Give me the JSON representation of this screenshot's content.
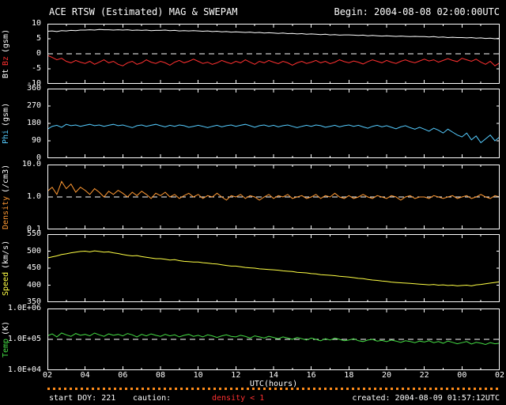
{
  "header": {
    "title": "ACE RTSW (Estimated) MAG & SWEPAM",
    "begin": "Begin: 2004-08-08 02:00:00UTC"
  },
  "footer": {
    "start_doy": "start DOY: 221",
    "caution_label": "caution:",
    "caution_value": "density < 1",
    "created": "created: 2004-08-09 01:57:12UTC"
  },
  "colors": {
    "background": "#000000",
    "frame": "#ffffff",
    "bt": "#ffffff",
    "bz": "#ff3030",
    "phi": "#55ccff",
    "density": "#ff9933",
    "speed": "#ffff44",
    "temp": "#44dd44",
    "caution": "#ff8c1a"
  },
  "chart_data": {
    "type": "line",
    "title": "ACE RTSW (Estimated) MAG & SWEPAM",
    "x_axis": {
      "label": "UTC(hours)",
      "range": [
        2,
        26
      ],
      "ticks": [
        "02",
        "04",
        "06",
        "08",
        "10",
        "12",
        "14",
        "16",
        "18",
        "20",
        "22",
        "00",
        "02"
      ],
      "tick_values": [
        2,
        4,
        6,
        8,
        10,
        12,
        14,
        16,
        18,
        20,
        22,
        24,
        26
      ]
    },
    "panels": [
      {
        "id": "mag",
        "axis_label_parts": [
          {
            "text": "Bt",
            "color": "#ffffff"
          },
          {
            "text": "Bz",
            "color": "#ff3030"
          },
          {
            "text": "(gsm)",
            "color": "#ffffff"
          }
        ],
        "scale": "linear",
        "ylim": [
          -10,
          10
        ],
        "yticks": [
          {
            "v": 10,
            "label": "10"
          },
          {
            "v": 5,
            "label": "5"
          },
          {
            "v": 0,
            "label": "0"
          },
          {
            "v": -5,
            "label": "-5"
          },
          {
            "v": -10,
            "label": "-10"
          }
        ],
        "dashed_at": 0,
        "series": [
          {
            "name": "Bt",
            "color": "#ffffff",
            "x_start": 2,
            "x_step": 0.25,
            "values": [
              7.5,
              7.6,
              7.4,
              7.7,
              7.6,
              7.8,
              7.7,
              7.9,
              7.9,
              8.0,
              7.9,
              8.1,
              8.0,
              8.0,
              7.9,
              8.0,
              7.9,
              8.0,
              7.8,
              7.9,
              7.8,
              7.9,
              7.7,
              7.8,
              7.8,
              7.9,
              7.7,
              7.8,
              7.6,
              7.7,
              7.6,
              7.7,
              7.6,
              7.5,
              7.6,
              7.4,
              7.5,
              7.3,
              7.4,
              7.2,
              7.3,
              7.2,
              7.1,
              7.2,
              7.0,
              7.1,
              6.9,
              7.0,
              6.9,
              6.8,
              6.9,
              6.7,
              6.8,
              6.6,
              6.7,
              6.5,
              6.6,
              6.5,
              6.4,
              6.5,
              6.3,
              6.4,
              6.2,
              6.3,
              6.3,
              6.2,
              6.1,
              6.2,
              6.0,
              6.1,
              6.0,
              5.9,
              6.0,
              5.9,
              5.8,
              5.9,
              5.8,
              5.7,
              5.8,
              5.7,
              5.7,
              5.6,
              5.7,
              5.5,
              5.6,
              5.4,
              5.5,
              5.4,
              5.4,
              5.3,
              5.4,
              5.2,
              5.3,
              5.1,
              5.2,
              5.0,
              5.2
            ]
          },
          {
            "name": "Bz",
            "color": "#ff3030",
            "x_start": 2,
            "x_step": 0.25,
            "values": [
              -0.5,
              -1.2,
              -2.0,
              -1.5,
              -2.5,
              -3.0,
              -2.2,
              -2.8,
              -3.2,
              -2.5,
              -3.5,
              -2.8,
              -2.0,
              -3.0,
              -2.5,
              -3.5,
              -4.0,
              -3.0,
              -2.5,
              -3.5,
              -3.0,
              -2.0,
              -2.8,
              -3.2,
              -2.5,
              -3.0,
              -3.8,
              -2.8,
              -2.2,
              -3.0,
              -2.5,
              -1.8,
              -2.5,
              -3.2,
              -2.8,
              -3.5,
              -3.0,
              -2.2,
              -2.8,
              -3.3,
              -2.5,
              -3.0,
              -2.0,
              -2.8,
              -3.5,
              -2.5,
              -3.0,
              -2.2,
              -2.8,
              -3.3,
              -2.5,
              -3.0,
              -3.8,
              -3.0,
              -2.5,
              -3.2,
              -2.8,
              -2.2,
              -3.0,
              -2.5,
              -3.3,
              -2.8,
              -2.0,
              -2.6,
              -3.0,
              -2.4,
              -2.8,
              -3.4,
              -2.6,
              -2.0,
              -2.5,
              -3.0,
              -2.2,
              -2.8,
              -3.2,
              -2.5,
              -2.0,
              -2.6,
              -3.0,
              -2.4,
              -1.8,
              -2.4,
              -2.0,
              -2.8,
              -2.2,
              -1.6,
              -2.2,
              -2.6,
              -1.5,
              -2.0,
              -2.5,
              -1.8,
              -2.8,
              -3.5,
              -2.5,
              -4.0,
              -3.0
            ]
          }
        ]
      },
      {
        "id": "phi",
        "axis_label_parts": [
          {
            "text": "Phi",
            "color": "#55ccff"
          },
          {
            "text": "(gsm)",
            "color": "#ffffff"
          }
        ],
        "scale": "linear",
        "ylim": [
          0,
          360
        ],
        "yticks": [
          {
            "v": 360,
            "label": "360"
          },
          {
            "v": 270,
            "label": "270"
          },
          {
            "v": 180,
            "label": "180"
          },
          {
            "v": 90,
            "label": "90"
          },
          {
            "v": 0,
            "label": "0"
          }
        ],
        "dashed_at": null,
        "series": [
          {
            "name": "Phi",
            "color": "#55ccff",
            "x_start": 2,
            "x_step": 0.25,
            "values": [
              150,
              165,
              170,
              160,
              175,
              168,
              172,
              165,
              170,
              175,
              168,
              172,
              165,
              170,
              175,
              168,
              172,
              165,
              158,
              168,
              172,
              165,
              170,
              175,
              168,
              162,
              170,
              165,
              172,
              168,
              160,
              165,
              170,
              165,
              158,
              165,
              170,
              162,
              168,
              172,
              165,
              170,
              175,
              168,
              160,
              168,
              172,
              165,
              170,
              162,
              168,
              172,
              165,
              158,
              165,
              170,
              165,
              172,
              168,
              160,
              165,
              170,
              162,
              168,
              172,
              165,
              170,
              162,
              155,
              165,
              170,
              162,
              168,
              160,
              152,
              162,
              168,
              158,
              150,
              160,
              150,
              140,
              155,
              145,
              130,
              150,
              135,
              120,
              110,
              130,
              95,
              115,
              80,
              100,
              120,
              90,
              110
            ]
          }
        ]
      },
      {
        "id": "density",
        "axis_label_parts": [
          {
            "text": "Density",
            "color": "#ff9933"
          },
          {
            "text": "(/cm3)",
            "color": "#ffffff"
          }
        ],
        "scale": "log",
        "ylim": [
          0.1,
          10
        ],
        "yticks": [
          {
            "v": 10,
            "label": "10.0"
          },
          {
            "v": 1,
            "label": "1.0"
          },
          {
            "v": 0.1,
            "label": "0.1"
          }
        ],
        "dashed_at": 1,
        "series": [
          {
            "name": "Density",
            "color": "#ff9933",
            "x_start": 2,
            "x_step": 0.25,
            "values": [
              1.5,
              2.0,
              1.2,
              3.0,
              1.8,
              2.5,
              1.4,
              2.0,
              1.6,
              1.2,
              1.8,
              1.4,
              1.0,
              1.5,
              1.2,
              1.6,
              1.3,
              1.0,
              1.4,
              1.1,
              1.5,
              1.2,
              0.9,
              1.3,
              1.1,
              1.4,
              1.0,
              1.2,
              0.9,
              1.1,
              1.3,
              1.0,
              1.2,
              0.9,
              1.1,
              1.0,
              1.3,
              1.0,
              0.8,
              1.1,
              1.0,
              1.2,
              0.9,
              1.1,
              1.0,
              0.8,
              1.0,
              1.2,
              0.9,
              1.1,
              1.0,
              1.2,
              0.9,
              1.0,
              1.1,
              0.9,
              1.0,
              1.2,
              0.9,
              1.1,
              1.0,
              1.3,
              1.0,
              0.9,
              1.1,
              0.9,
              1.0,
              1.2,
              1.0,
              0.9,
              1.1,
              1.0,
              0.9,
              1.1,
              1.0,
              0.8,
              1.0,
              1.1,
              0.9,
              1.0,
              1.0,
              0.9,
              1.1,
              1.0,
              0.9,
              1.0,
              1.1,
              0.9,
              1.0,
              1.1,
              0.9,
              1.0,
              1.2,
              1.0,
              0.9,
              1.1,
              1.0
            ]
          }
        ]
      },
      {
        "id": "speed",
        "axis_label_parts": [
          {
            "text": "Speed",
            "color": "#ffff44"
          },
          {
            "text": "(km/s)",
            "color": "#ffffff"
          }
        ],
        "scale": "linear",
        "ylim": [
          350,
          550
        ],
        "yticks": [
          {
            "v": 550,
            "label": "550"
          },
          {
            "v": 500,
            "label": "500"
          },
          {
            "v": 450,
            "label": "450"
          },
          {
            "v": 400,
            "label": "400"
          },
          {
            "v": 350,
            "label": "350"
          }
        ],
        "dashed_at": null,
        "series": [
          {
            "name": "Speed",
            "color": "#ffff44",
            "x_start": 2,
            "x_step": 0.25,
            "values": [
              480,
              483,
              486,
              490,
              492,
              495,
              497,
              499,
              500,
              498,
              501,
              499,
              497,
              498,
              495,
              493,
              490,
              488,
              486,
              487,
              484,
              482,
              480,
              478,
              478,
              476,
              474,
              475,
              472,
              470,
              469,
              468,
              468,
              466,
              465,
              463,
              462,
              460,
              458,
              456,
              456,
              454,
              452,
              451,
              450,
              448,
              447,
              446,
              445,
              444,
              442,
              441,
              440,
              438,
              437,
              436,
              434,
              433,
              431,
              430,
              429,
              428,
              426,
              425,
              424,
              422,
              420,
              419,
              417,
              415,
              414,
              412,
              411,
              409,
              408,
              407,
              406,
              405,
              404,
              403,
              402,
              401,
              402,
              400,
              401,
              399,
              400,
              398,
              399,
              400,
              398,
              401,
              402,
              404,
              406,
              408,
              410
            ]
          }
        ]
      },
      {
        "id": "temp",
        "axis_label_parts": [
          {
            "text": "Temp",
            "color": "#44dd44"
          },
          {
            "text": "(K)",
            "color": "#ffffff"
          }
        ],
        "scale": "log",
        "ylim": [
          10000,
          1000000
        ],
        "yticks": [
          {
            "v": 1000000,
            "label": "1.0E+06"
          },
          {
            "v": 100000,
            "label": "1.0E+05"
          },
          {
            "v": 10000,
            "label": "1.0E+04"
          }
        ],
        "dashed_at": 100000,
        "series": [
          {
            "name": "Temp",
            "color": "#44dd44",
            "x_start": 2,
            "x_step": 0.25,
            "values": [
              130000,
              150000,
              120000,
              160000,
              140000,
              125000,
              155000,
              135000,
              145000,
              130000,
              160000,
              140000,
              125000,
              150000,
              135000,
              145000,
              130000,
              155000,
              140000,
              120000,
              145000,
              130000,
              150000,
              135000,
              125000,
              145000,
              130000,
              140000,
              120000,
              135000,
              145000,
              125000,
              135000,
              120000,
              140000,
              130000,
              115000,
              130000,
              140000,
              125000,
              120000,
              135000,
              125000,
              110000,
              130000,
              120000,
              110000,
              125000,
              115000,
              105000,
              120000,
              110000,
              100000,
              115000,
              105000,
              95000,
              110000,
              100000,
              90000,
              105000,
              95000,
              110000,
              100000,
              90000,
              95000,
              105000,
              90000,
              85000,
              95000,
              100000,
              88000,
              92000,
              85000,
              95000,
              88000,
              80000,
              90000,
              85000,
              78000,
              88000,
              82000,
              90000,
              78000,
              85000,
              75000,
              88000,
              80000,
              72000,
              78000,
              85000,
              70000,
              80000,
              75000,
              68000,
              78000,
              72000,
              75000
            ]
          }
        ]
      }
    ]
  }
}
